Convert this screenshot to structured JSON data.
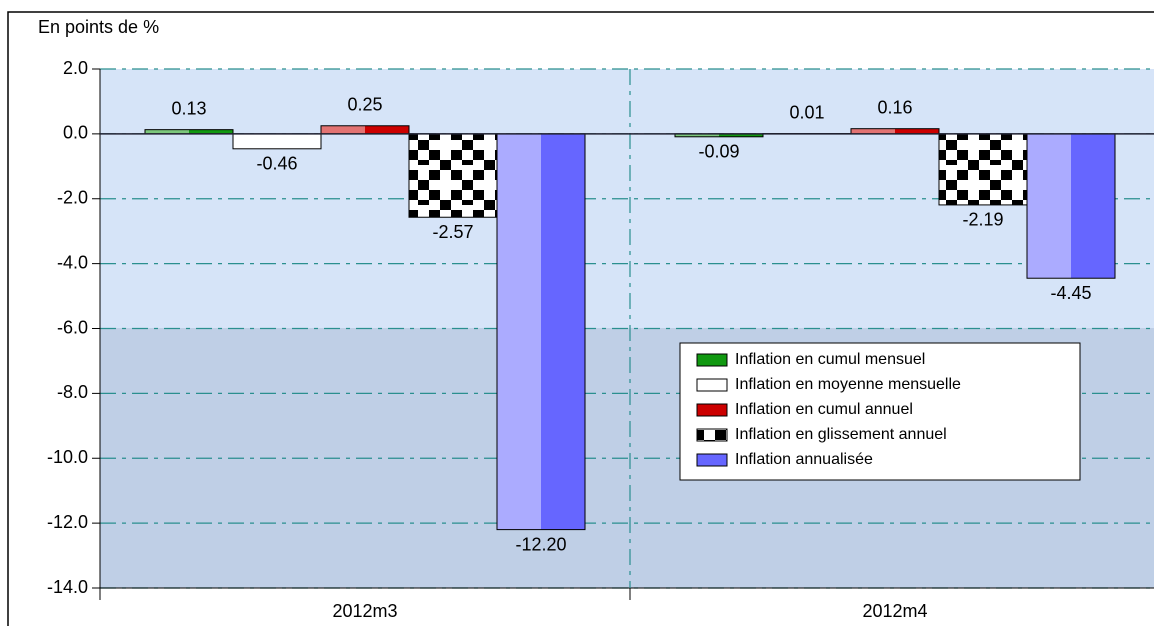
{
  "chart_data": {
    "type": "bar",
    "y_axis_label": "En points de %",
    "categories": [
      "2012m3",
      "2012m4"
    ],
    "series": [
      {
        "name": "Inflation en cumul mensuel",
        "color": "#119911",
        "values": [
          0.13,
          -0.09
        ],
        "value_labels": [
          "0.13",
          "-0.09"
        ]
      },
      {
        "name": "Inflation en moyenne mensuelle",
        "color": "#ffffff",
        "values": [
          -0.46,
          0.01
        ],
        "value_labels": [
          "-0.46",
          "0.01"
        ]
      },
      {
        "name": "Inflation en cumul annuel",
        "color": "#cc0000",
        "values": [
          0.25,
          0.16
        ],
        "value_labels": [
          "0.25",
          "0.16"
        ]
      },
      {
        "name": "Inflation en glissement annuel",
        "color": "#000000",
        "pattern": "checker",
        "values": [
          -2.57,
          -2.19
        ],
        "value_labels": [
          "-2.57",
          "-2.19"
        ]
      },
      {
        "name": "Inflation annualisée",
        "color": "#6666ff",
        "values": [
          -12.2,
          -4.45
        ],
        "value_labels": [
          "-12.20",
          "-4.45"
        ]
      }
    ],
    "ylim": [
      -14,
      2
    ],
    "yticks": [
      {
        "value": 2,
        "label": "2.0"
      },
      {
        "value": 0,
        "label": "0.0"
      },
      {
        "value": -2,
        "label": "-2.0"
      },
      {
        "value": -4,
        "label": "-4.0"
      },
      {
        "value": -6,
        "label": "-6.0"
      },
      {
        "value": -8,
        "label": "-8.0"
      },
      {
        "value": -10,
        "label": "-10.0"
      },
      {
        "value": -12,
        "label": "-12.0"
      },
      {
        "value": -14,
        "label": "-14.0"
      }
    ],
    "grid": true,
    "legend": "center-right"
  }
}
